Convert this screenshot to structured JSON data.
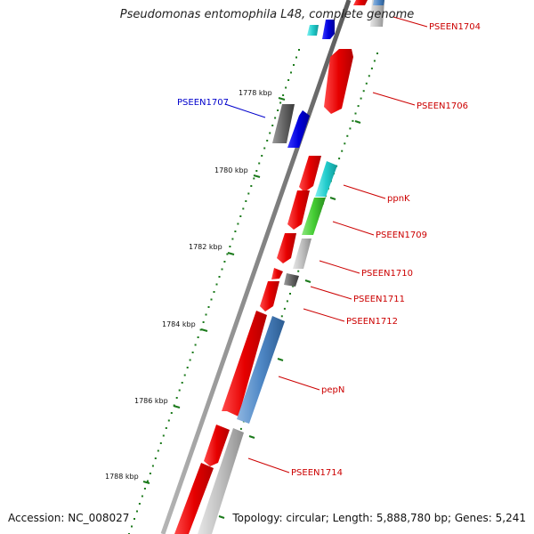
{
  "title": "Pseudomonas entomophila L48, complete genome",
  "accession": "Accession: NC_008027",
  "topology": "Topology: circular; Length: 5,888,780 bp; Genes: 5,241",
  "ticks": [
    "1778 kbp",
    "1780 kbp",
    "1782 kbp",
    "1784 kbp",
    "1786 kbp",
    "1788 kbp"
  ],
  "genes": [
    "PSEEN1704",
    "PSEEN1706",
    "PSEEN1707",
    "ppnK",
    "PSEEN1709",
    "PSEEN1710",
    "PSEEN1711",
    "PSEEN1712",
    "pepN",
    "PSEEN1714"
  ],
  "colors": {
    "forward_red": "#e60000",
    "reverse_red": "#e60000",
    "blue": "#0000dd",
    "cyan": "#22cccc",
    "green": "#44cc33",
    "steelblue": "#4f88c6",
    "gray": "#bfbfbf",
    "darkgray": "#666666",
    "tick_green": "#1b7a1b",
    "label_red": "#cc0000",
    "label_blue": "#0000cc"
  }
}
